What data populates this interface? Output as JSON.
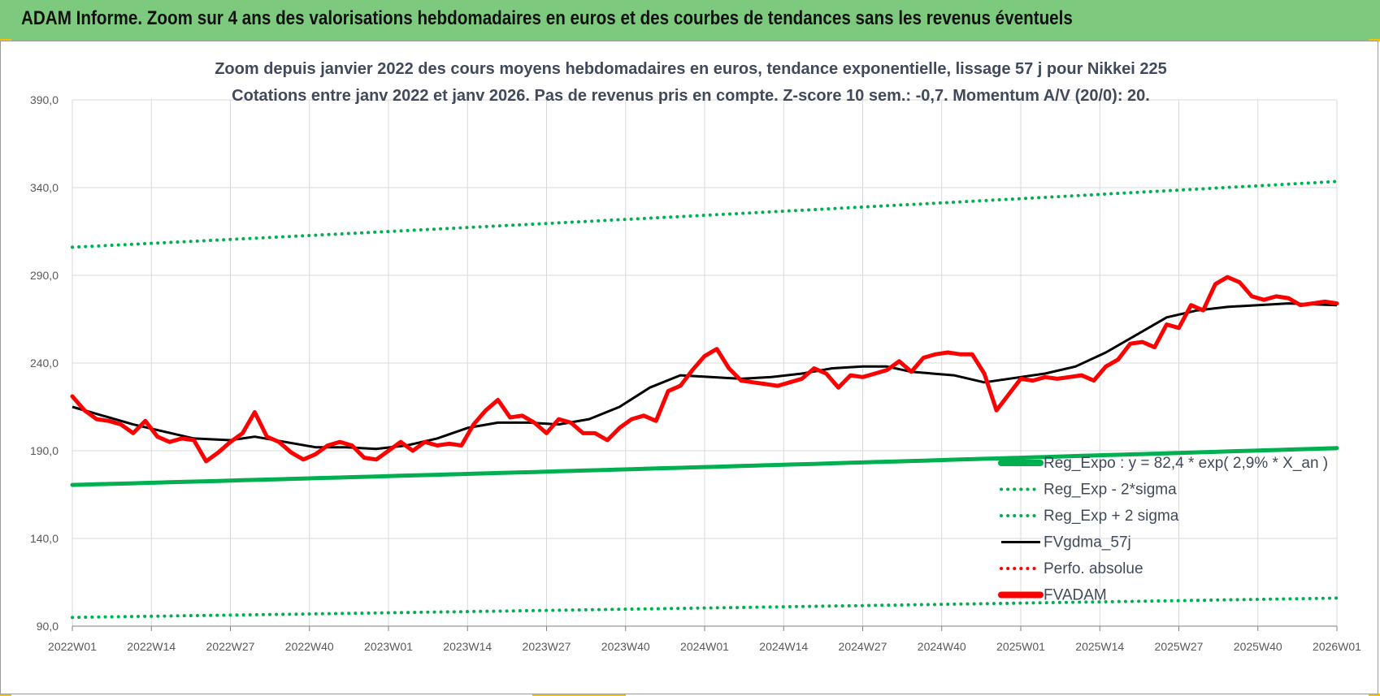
{
  "header": {
    "title": "ADAM Informe. Zoom sur 4 ans des valorisations hebdomadaires en euros et des courbes de tendances sans les revenus éventuels"
  },
  "chart_data": {
    "type": "line",
    "title": "Zoom depuis janvier 2022 des cours moyens hebdomadaires en euros, tendance exponentielle, lissage 57 j pour Nikkei 225",
    "subtitle": "Cotations entre janv 2022 et janv 2026. Pas de revenus pris en compte. Z-score 10 sem.: -0,7. Momentum A/V (20/0): 20.",
    "xlabel": "",
    "ylabel": "",
    "ylim": [
      90,
      390
    ],
    "yticks": [
      "90,0",
      "140,0",
      "190,0",
      "240,0",
      "290,0",
      "340,0",
      "390,0"
    ],
    "xticks": [
      "2022W01",
      "2022W14",
      "2022W27",
      "2022W40",
      "2023W01",
      "2023W14",
      "2023W27",
      "2023W40",
      "2024W01",
      "2024W14",
      "2024W27",
      "2024W40",
      "2025W01",
      "2025W14",
      "2025W27",
      "2025W40",
      "2026W01"
    ],
    "grid": true,
    "legend_position": "right",
    "n_weeks": 209,
    "series": [
      {
        "name": "Reg_Expo : y = 82,4 * exp( 2,9% * X_an )",
        "color": "#00b050",
        "style": "solid-thick",
        "x": [
          0,
          208
        ],
        "values": [
          170.5,
          191.5
        ]
      },
      {
        "name": "Reg_Exp - 2*sigma",
        "color": "#00b050",
        "style": "dotted",
        "x": [
          0,
          208
        ],
        "values": [
          95,
          106
        ]
      },
      {
        "name": "Reg_Exp + 2 sigma",
        "color": "#00b050",
        "style": "dotted",
        "x": [
          0,
          208
        ],
        "values": [
          306,
          343.5
        ]
      },
      {
        "name": "FVgdma_57j",
        "color": "#000000",
        "style": "solid",
        "x": [
          0,
          10,
          20,
          26,
          30,
          35,
          40,
          45,
          50,
          55,
          60,
          65,
          70,
          75,
          80,
          85,
          90,
          95,
          100,
          105,
          110,
          115,
          120,
          125,
          130,
          134,
          138,
          145,
          150,
          160,
          165,
          170,
          175,
          180,
          185,
          190,
          195,
          200,
          208
        ],
        "values": [
          215,
          205,
          197,
          196,
          198,
          195,
          192,
          192,
          191,
          193,
          197,
          203,
          206,
          206,
          205,
          208,
          215,
          226,
          233,
          232,
          231,
          232,
          234,
          237,
          238,
          238,
          235,
          233,
          229,
          234,
          238,
          246,
          256,
          266,
          270,
          272,
          273,
          274,
          273
        ]
      },
      {
        "name": "Perfo. absolue",
        "color": "#ff0000",
        "style": "dotted",
        "x": [],
        "values": []
      },
      {
        "name": "FVADAM",
        "color": "#ff0000",
        "style": "solid-thick",
        "x": [
          0,
          2,
          4,
          6,
          8,
          10,
          12,
          14,
          16,
          18,
          20,
          22,
          24,
          26,
          28,
          30,
          32,
          34,
          36,
          38,
          40,
          42,
          44,
          46,
          48,
          50,
          52,
          54,
          56,
          58,
          60,
          62,
          64,
          66,
          68,
          70,
          72,
          74,
          76,
          78,
          80,
          82,
          84,
          86,
          88,
          90,
          92,
          94,
          96,
          98,
          100,
          102,
          104,
          106,
          108,
          110,
          112,
          114,
          116,
          118,
          120,
          122,
          124,
          126,
          128,
          130,
          132,
          134,
          136,
          138,
          140,
          142,
          144,
          146,
          148,
          150,
          152,
          154,
          156,
          158,
          160,
          162,
          164,
          166,
          168,
          170,
          172,
          174,
          176,
          178,
          180,
          182,
          184,
          186,
          188,
          190,
          192,
          194,
          196,
          198,
          200,
          202,
          204,
          206,
          208
        ],
        "values": [
          221,
          213,
          208,
          207,
          205,
          200,
          207,
          198,
          195,
          197,
          196,
          184,
          189,
          195,
          200,
          212,
          198,
          195,
          189,
          185,
          188,
          193,
          195,
          193,
          186,
          185,
          190,
          195,
          190,
          195,
          193,
          194,
          193,
          205,
          213,
          219,
          209,
          210,
          206,
          200,
          208,
          206,
          200,
          200,
          196,
          203,
          208,
          210,
          207,
          224,
          227,
          236,
          244,
          248,
          237,
          230,
          229,
          228,
          227,
          229,
          231,
          237,
          234,
          226,
          233,
          232,
          234,
          236,
          241,
          235,
          243,
          245,
          246,
          245,
          245,
          234,
          213,
          222,
          231,
          230,
          232,
          231,
          232,
          233,
          230,
          238,
          242,
          251,
          252,
          249,
          262,
          260,
          273,
          270,
          285,
          289,
          286,
          278,
          276,
          278,
          277,
          273,
          274,
          275,
          274
        ]
      }
    ]
  }
}
